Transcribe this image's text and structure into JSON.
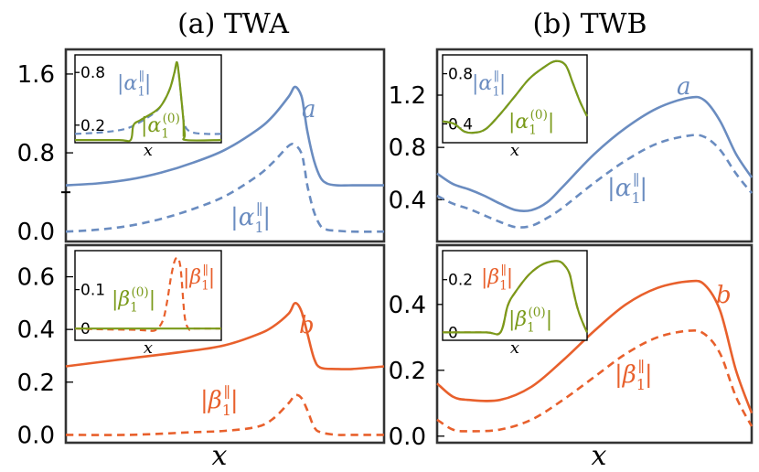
{
  "colors": {
    "blue": "#6a8cc0",
    "orange": "#e8602c",
    "green": "#7a9a1a",
    "frame": "#333333"
  },
  "titles": {
    "left": "(a) TWA",
    "right": "(b) TWB"
  },
  "x_label": "x",
  "chart_data": [
    {
      "id": "a-top",
      "type": "line",
      "title": "(a) TWA",
      "xlabel": "x",
      "ylabel": "",
      "xlim": [
        0,
        1
      ],
      "ylim": [
        -0.1,
        1.85
      ],
      "yticks": [
        "0.0",
        "0.8",
        "1.6"
      ],
      "ytick_values": [
        0,
        0.8,
        1.6
      ],
      "minor_ytick_values": [
        0.4
      ],
      "series": [
        {
          "name": "a",
          "style": "solid",
          "color": "blue",
          "x": [
            0,
            0.1,
            0.2,
            0.3,
            0.4,
            0.5,
            0.6,
            0.65,
            0.7,
            0.72,
            0.74,
            0.75,
            0.76,
            0.78,
            0.8,
            0.82,
            0.85,
            0.9,
            1.0
          ],
          "y": [
            0.47,
            0.49,
            0.53,
            0.6,
            0.7,
            0.83,
            1.03,
            1.17,
            1.37,
            1.47,
            1.38,
            1.2,
            1.0,
            0.72,
            0.55,
            0.49,
            0.47,
            0.47,
            0.47
          ]
        },
        {
          "name": "|α1∥|",
          "style": "dashed",
          "color": "blue",
          "x": [
            0,
            0.1,
            0.2,
            0.3,
            0.4,
            0.5,
            0.6,
            0.65,
            0.7,
            0.72,
            0.74,
            0.75,
            0.76,
            0.78,
            0.8,
            0.82,
            0.85,
            0.9,
            1.0
          ],
          "y": [
            0.0,
            0.02,
            0.06,
            0.13,
            0.23,
            0.36,
            0.56,
            0.7,
            0.87,
            0.88,
            0.8,
            0.65,
            0.45,
            0.2,
            0.06,
            0.02,
            0.01,
            0.0,
            0.0
          ]
        }
      ],
      "annotations": [
        {
          "text": "a",
          "series": 0
        },
        {
          "text": "|α1∥|",
          "series": 1
        }
      ],
      "inset": {
        "xlabel": "x",
        "ylim": [
          0,
          1.0
        ],
        "yticks": [
          "0.2",
          "0.8"
        ],
        "ytick_values": [
          0.2,
          0.8
        ],
        "series": [
          {
            "name": "|α1∥|",
            "style": "dashed",
            "color": "blue",
            "x": [
              0,
              0.2,
              0.35,
              0.45,
              0.55,
              0.6,
              0.65,
              0.68,
              0.7,
              0.73,
              0.75,
              0.8,
              0.9,
              1.0
            ],
            "y": [
              0.1,
              0.12,
              0.16,
              0.24,
              0.35,
              0.45,
              0.62,
              0.8,
              0.9,
              0.45,
              0.2,
              0.12,
              0.1,
              0.1
            ]
          },
          {
            "name": "|α1(0)|",
            "style": "solid",
            "color": "green",
            "x": [
              0,
              0.3,
              0.38,
              0.4,
              0.45,
              0.55,
              0.6,
              0.65,
              0.68,
              0.7,
              0.73,
              0.75,
              0.76,
              1.0
            ],
            "y": [
              0.03,
              0.03,
              0.03,
              0.2,
              0.26,
              0.36,
              0.45,
              0.62,
              0.8,
              0.9,
              0.45,
              0.1,
              0.03,
              0.03
            ]
          }
        ],
        "annotations": [
          {
            "text": "|α1∥|"
          },
          {
            "text": "|α1(0)|"
          }
        ]
      }
    },
    {
      "id": "b-top",
      "type": "line",
      "title": "(b) TWB",
      "xlabel": "x",
      "ylabel": "",
      "xlim": [
        0,
        1
      ],
      "ylim": [
        0.08,
        1.55
      ],
      "yticks": [
        "0.4",
        "0.8",
        "1.2"
      ],
      "ytick_values": [
        0.4,
        0.8,
        1.2
      ],
      "series": [
        {
          "name": "a",
          "style": "solid",
          "color": "blue",
          "x": [
            0,
            0.05,
            0.1,
            0.15,
            0.2,
            0.25,
            0.3,
            0.35,
            0.4,
            0.5,
            0.6,
            0.7,
            0.8,
            0.85,
            0.9,
            0.95,
            1.0
          ],
          "y": [
            0.6,
            0.52,
            0.48,
            0.43,
            0.37,
            0.32,
            0.32,
            0.38,
            0.5,
            0.75,
            0.95,
            1.1,
            1.18,
            1.16,
            1.0,
            0.75,
            0.57
          ]
        },
        {
          "name": "|α1∥|",
          "style": "dashed",
          "color": "blue",
          "x": [
            0,
            0.05,
            0.1,
            0.15,
            0.2,
            0.25,
            0.3,
            0.35,
            0.4,
            0.5,
            0.6,
            0.7,
            0.8,
            0.85,
            0.9,
            0.95,
            1.0
          ],
          "y": [
            0.43,
            0.37,
            0.33,
            0.28,
            0.23,
            0.19,
            0.2,
            0.26,
            0.34,
            0.53,
            0.7,
            0.83,
            0.89,
            0.88,
            0.78,
            0.6,
            0.45
          ]
        }
      ],
      "annotations": [
        {
          "text": "a",
          "series": 0
        },
        {
          "text": "|α1∥|",
          "series": 1
        }
      ],
      "inset": {
        "xlabel": "x",
        "ylim": [
          0.25,
          0.95
        ],
        "yticks": [
          "0.4",
          "0.8"
        ],
        "ytick_values": [
          0.4,
          0.8
        ],
        "series": [
          {
            "name": "|α1∥|",
            "style": "dashed",
            "color": "blue",
            "x": [
              0,
              0.08,
              0.15,
              0.22,
              0.3,
              0.4,
              0.5,
              0.6,
              0.7,
              0.78,
              0.85,
              0.9,
              0.95,
              1.0
            ],
            "y": [
              0.42,
              0.4,
              0.34,
              0.33,
              0.36,
              0.48,
              0.62,
              0.76,
              0.85,
              0.9,
              0.87,
              0.73,
              0.58,
              0.46
            ]
          },
          {
            "name": "|α1(0)|",
            "style": "solid",
            "color": "green",
            "x": [
              0,
              0.08,
              0.15,
              0.22,
              0.3,
              0.4,
              0.5,
              0.6,
              0.7,
              0.78,
              0.85,
              0.9,
              0.95,
              1.0
            ],
            "y": [
              0.42,
              0.4,
              0.34,
              0.33,
              0.36,
              0.48,
              0.62,
              0.76,
              0.85,
              0.9,
              0.87,
              0.73,
              0.58,
              0.46
            ]
          }
        ],
        "annotations": [
          {
            "text": "|α1∥|"
          },
          {
            "text": "|α1(0)|"
          }
        ]
      }
    },
    {
      "id": "a-bottom",
      "type": "line",
      "xlabel": "x",
      "ylabel": "",
      "xlim": [
        0,
        1
      ],
      "ylim": [
        -0.03,
        0.72
      ],
      "yticks": [
        "0.0",
        "0.2",
        "0.4",
        "0.6"
      ],
      "ytick_values": [
        0,
        0.2,
        0.4,
        0.6
      ],
      "series": [
        {
          "name": "b",
          "style": "solid",
          "color": "orange",
          "x": [
            0,
            0.2,
            0.4,
            0.5,
            0.6,
            0.65,
            0.7,
            0.72,
            0.74,
            0.76,
            0.78,
            0.8,
            0.85,
            0.9,
            1.0
          ],
          "y": [
            0.26,
            0.29,
            0.32,
            0.34,
            0.38,
            0.41,
            0.46,
            0.5,
            0.47,
            0.38,
            0.29,
            0.255,
            0.25,
            0.25,
            0.26
          ]
        },
        {
          "name": "|β1∥|",
          "style": "dashed",
          "color": "orange",
          "x": [
            0,
            0.2,
            0.4,
            0.5,
            0.6,
            0.65,
            0.7,
            0.72,
            0.74,
            0.76,
            0.78,
            0.8,
            0.85,
            0.9,
            1.0
          ],
          "y": [
            0.0,
            0.0,
            0.01,
            0.015,
            0.03,
            0.06,
            0.12,
            0.15,
            0.14,
            0.09,
            0.03,
            0.01,
            0.0,
            0.0,
            0.0
          ]
        }
      ],
      "annotations": [
        {
          "text": "b",
          "series": 0
        },
        {
          "text": "|β1∥|",
          "series": 1
        }
      ],
      "inset": {
        "xlabel": "x",
        "ylim": [
          -0.03,
          0.2
        ],
        "yticks": [
          "0",
          "0.1"
        ],
        "ytick_values": [
          0,
          0.1
        ],
        "series": [
          {
            "name": "|β1∥|",
            "style": "dashed",
            "color": "orange",
            "x": [
              0,
              0.2,
              0.4,
              0.5,
              0.55,
              0.6,
              0.63,
              0.66,
              0.69,
              0.72,
              0.75,
              0.78,
              0.8,
              0.85,
              1.0
            ],
            "y": [
              0.0,
              -0.002,
              -0.003,
              -0.005,
              -0.004,
              0.02,
              0.07,
              0.14,
              0.18,
              0.16,
              0.03,
              -0.002,
              0.0,
              0.0,
              0.0
            ]
          },
          {
            "name": "|β1(0)|",
            "style": "solid",
            "color": "green",
            "x": [
              0,
              1.0
            ],
            "y": [
              0.0,
              0.0
            ]
          }
        ],
        "annotations": [
          {
            "text": "|β1(0)|"
          },
          {
            "text": "|β1∥|"
          }
        ]
      }
    },
    {
      "id": "b-bottom",
      "type": "line",
      "xlabel": "x",
      "ylabel": "",
      "xlim": [
        0,
        1
      ],
      "ylim": [
        -0.02,
        0.58
      ],
      "yticks": [
        "0.0",
        "0.2",
        "0.4"
      ],
      "ytick_values": [
        0,
        0.2,
        0.4
      ],
      "series": [
        {
          "name": "b",
          "style": "solid",
          "color": "orange",
          "x": [
            0,
            0.05,
            0.1,
            0.2,
            0.3,
            0.4,
            0.5,
            0.6,
            0.7,
            0.8,
            0.85,
            0.9,
            0.95,
            1.0
          ],
          "y": [
            0.16,
            0.12,
            0.11,
            0.11,
            0.15,
            0.23,
            0.32,
            0.4,
            0.45,
            0.47,
            0.46,
            0.38,
            0.2,
            0.07
          ]
        },
        {
          "name": "|β1∥|",
          "style": "dashed",
          "color": "orange",
          "x": [
            0,
            0.05,
            0.1,
            0.2,
            0.3,
            0.4,
            0.5,
            0.6,
            0.7,
            0.8,
            0.85,
            0.9,
            0.95,
            1.0
          ],
          "y": [
            0.05,
            0.02,
            0.015,
            0.02,
            0.05,
            0.11,
            0.18,
            0.25,
            0.3,
            0.32,
            0.31,
            0.25,
            0.12,
            0.03
          ]
        }
      ],
      "annotations": [
        {
          "text": "b",
          "series": 0
        },
        {
          "text": "|β1∥|",
          "series": 1
        }
      ],
      "inset": {
        "xlabel": "x",
        "ylim": [
          -0.03,
          0.31
        ],
        "yticks": [
          "0",
          "0.2"
        ],
        "ytick_values": [
          0,
          0.2
        ],
        "series": [
          {
            "name": "|β1∥|",
            "style": "dashed",
            "color": "orange",
            "x": [
              0,
              0.3,
              0.4,
              0.45,
              0.5,
              0.6,
              0.7,
              0.8,
              0.85,
              0.88,
              0.9,
              0.93,
              0.96,
              1.0
            ],
            "y": [
              0.0,
              0.0,
              0.0,
              0.1,
              0.15,
              0.22,
              0.26,
              0.27,
              0.25,
              0.22,
              0.17,
              0.1,
              0.05,
              0.0
            ]
          },
          {
            "name": "|β1(0)|",
            "style": "solid",
            "color": "green",
            "x": [
              0,
              0.3,
              0.4,
              0.45,
              0.5,
              0.6,
              0.7,
              0.8,
              0.85,
              0.88,
              0.9,
              0.93,
              0.96,
              1.0
            ],
            "y": [
              0.0,
              0.0,
              0.0,
              0.1,
              0.15,
              0.22,
              0.26,
              0.27,
              0.25,
              0.22,
              0.17,
              0.1,
              0.05,
              0.0
            ]
          }
        ],
        "annotations": [
          {
            "text": "|β1∥|"
          },
          {
            "text": "|β1(0)|"
          }
        ]
      }
    }
  ]
}
